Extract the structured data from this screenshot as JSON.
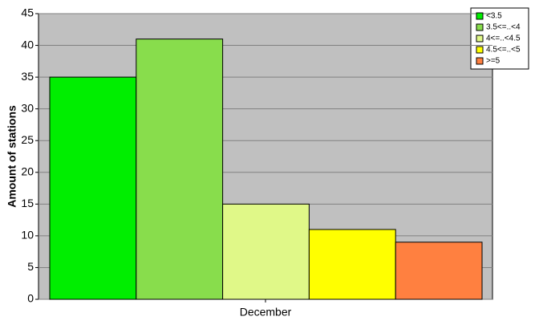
{
  "chart_data": {
    "type": "bar",
    "y_label": "Amount of stations",
    "categories": [
      "December"
    ],
    "series": [
      {
        "name": "<3.5",
        "color": "#00ee00",
        "values": [
          35
        ]
      },
      {
        "name": "3.5<=..<4",
        "color": "#88dd4c",
        "values": [
          41
        ]
      },
      {
        "name": "4<=..<4.5",
        "color": "#e0f888",
        "values": [
          15
        ]
      },
      {
        "name": "4.5<=..<5",
        "color": "#ffff00",
        "values": [
          11
        ]
      },
      {
        "name": ">=5",
        "color": "#ff8040",
        "values": [
          9
        ]
      }
    ],
    "ylim": [
      0,
      45
    ],
    "yticks": [
      0,
      5,
      10,
      15,
      20,
      25,
      30,
      35,
      40,
      45
    ],
    "grid": true,
    "legend": "top-right"
  }
}
